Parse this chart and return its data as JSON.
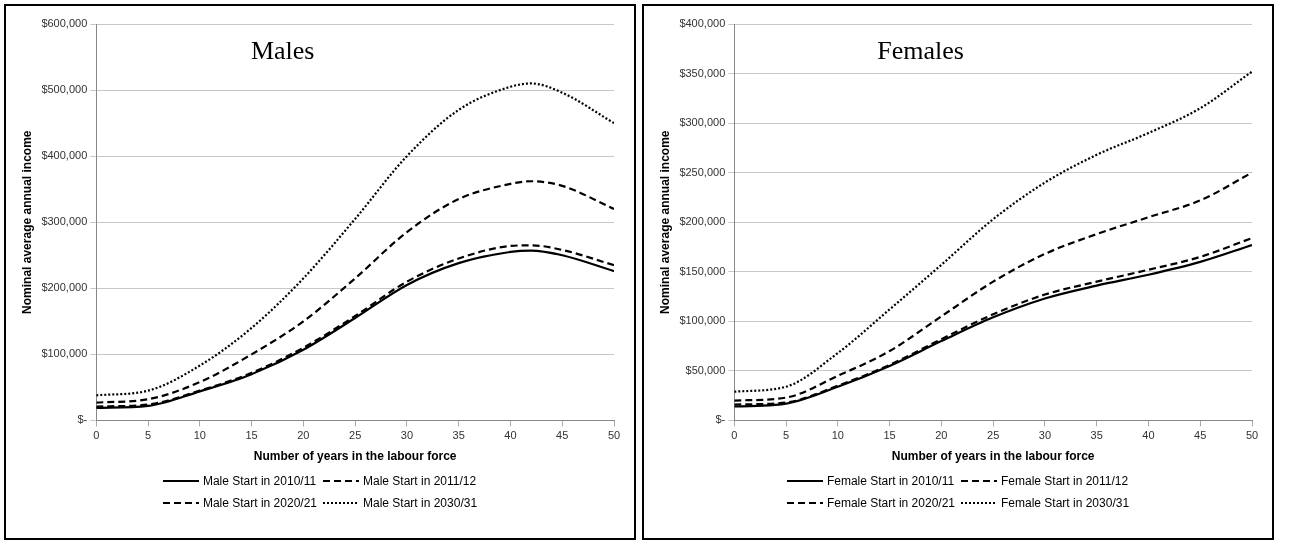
{
  "chart_data": [
    {
      "type": "line",
      "title": "Males",
      "xlabel": "Number of years in the labour force",
      "ylabel": "Nominal average annual income",
      "x": [
        0,
        5,
        10,
        15,
        20,
        25,
        30,
        35,
        40,
        42,
        45,
        50
      ],
      "xlim": [
        0,
        50
      ],
      "xticks": [
        0,
        5,
        10,
        15,
        20,
        25,
        30,
        35,
        40,
        45,
        50
      ],
      "ylim": [
        0,
        600000
      ],
      "yticks": [
        {
          "value": 0,
          "label": "$-"
        },
        {
          "value": 100000,
          "label": "$100,000"
        },
        {
          "value": 200000,
          "label": "$200,000"
        },
        {
          "value": 300000,
          "label": "$300,000"
        },
        {
          "value": 400000,
          "label": "$400,000"
        },
        {
          "value": 500000,
          "label": "$500,000"
        },
        {
          "value": 600000,
          "label": "$600,000"
        }
      ],
      "grid": "y",
      "legend": "bottom",
      "marker": "none",
      "series": [
        {
          "name": "Male Start in 2010/11",
          "color": "#000000",
          "line_style": "solid",
          "values": [
            19000,
            22000,
            44000,
            70000,
            107000,
            155000,
            205000,
            238000,
            255000,
            257000,
            250000,
            226000
          ]
        },
        {
          "name": "Male Start in 2011/12",
          "color": "#000000",
          "line_style": "dashed",
          "values": [
            21000,
            24000,
            45000,
            72000,
            110000,
            158000,
            210000,
            245000,
            264000,
            265000,
            258000,
            235000
          ]
        },
        {
          "name": "Male Start in 2020/21",
          "color": "#000000",
          "line_style": "dashed",
          "values": [
            27000,
            32000,
            58000,
            100000,
            150000,
            215000,
            285000,
            335000,
            358000,
            362000,
            355000,
            320000
          ]
        },
        {
          "name": "Male Start in 2030/31",
          "color": "#000000",
          "line_style": "dotted",
          "values": [
            38000,
            45000,
            83000,
            140000,
            215000,
            305000,
            400000,
            470000,
            505000,
            510000,
            496000,
            450000
          ]
        }
      ]
    },
    {
      "type": "line",
      "title": "Females",
      "xlabel": "Number of years in the labour force",
      "ylabel": "Nominal average annual income",
      "x": [
        0,
        5,
        10,
        15,
        20,
        25,
        30,
        35,
        40,
        45,
        50
      ],
      "xlim": [
        0,
        50
      ],
      "xticks": [
        0,
        5,
        10,
        15,
        20,
        25,
        30,
        35,
        40,
        45,
        50
      ],
      "ylim": [
        0,
        400000
      ],
      "yticks": [
        {
          "value": 0,
          "label": "$-"
        },
        {
          "value": 50000,
          "label": "$50,000"
        },
        {
          "value": 100000,
          "label": "$100,000"
        },
        {
          "value": 150000,
          "label": "$150,000"
        },
        {
          "value": 200000,
          "label": "$200,000"
        },
        {
          "value": 250000,
          "label": "$250,000"
        },
        {
          "value": 300000,
          "label": "$300,000"
        },
        {
          "value": 350000,
          "label": "$350,000"
        },
        {
          "value": 400000,
          "label": "$400,000"
        }
      ],
      "grid": "y",
      "legend": "bottom",
      "marker": "none",
      "series": [
        {
          "name": "Female Start in 2010/11",
          "color": "#000000",
          "line_style": "solid",
          "values": [
            14000,
            17000,
            34000,
            55000,
            80000,
            104000,
            123000,
            136000,
            147000,
            160000,
            177000
          ]
        },
        {
          "name": "Female Start in 2011/12",
          "color": "#000000",
          "line_style": "dashed",
          "values": [
            16000,
            18000,
            35000,
            56000,
            82000,
            107000,
            127000,
            140000,
            152000,
            165000,
            184000
          ]
        },
        {
          "name": "Female Start in 2020/21",
          "color": "#000000",
          "line_style": "dashed",
          "values": [
            20000,
            23000,
            45000,
            70000,
            105000,
            140000,
            168000,
            188000,
            205000,
            222000,
            250000
          ]
        },
        {
          "name": "Female Start in 2030/31",
          "color": "#000000",
          "line_style": "dotted",
          "values": [
            29000,
            34000,
            68000,
            112000,
            157000,
            203000,
            240000,
            268000,
            290000,
            315000,
            352000
          ]
        }
      ]
    }
  ]
}
